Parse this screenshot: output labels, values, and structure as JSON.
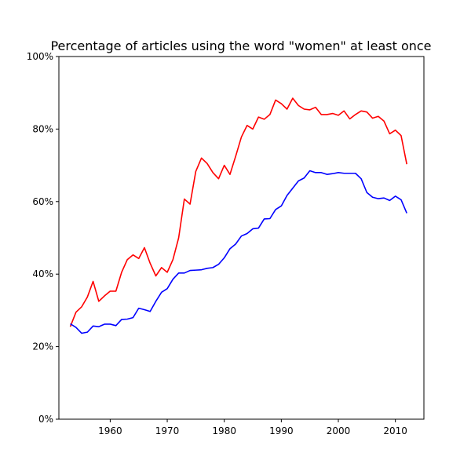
{
  "chart_data": {
    "type": "line",
    "title": "Percentage of articles using the word \"women\" at least once",
    "xlabel": "",
    "ylabel": "",
    "xlim": [
      1951,
      2015
    ],
    "ylim": [
      0,
      1
    ],
    "grid": false,
    "legend": "none",
    "x_ticks": [
      1960,
      1970,
      1980,
      1990,
      2000,
      2010
    ],
    "x_tick_labels": [
      "1960",
      "1970",
      "1980",
      "1990",
      "2000",
      "2010"
    ],
    "y_ticks": [
      0,
      0.2,
      0.4,
      0.6,
      0.8,
      1.0
    ],
    "y_tick_labels": [
      "0%",
      "20%",
      "40%",
      "60%",
      "80%",
      "100%"
    ],
    "x": [
      1953,
      1954,
      1955,
      1956,
      1957,
      1958,
      1959,
      1960,
      1961,
      1962,
      1963,
      1964,
      1965,
      1966,
      1967,
      1968,
      1969,
      1970,
      1971,
      1972,
      1973,
      1974,
      1975,
      1976,
      1977,
      1978,
      1979,
      1980,
      1981,
      1982,
      1983,
      1984,
      1985,
      1986,
      1987,
      1988,
      1989,
      1990,
      1991,
      1992,
      1993,
      1994,
      1995,
      1996,
      1997,
      1998,
      1999,
      2000,
      2001,
      2002,
      2003,
      2004,
      2005,
      2006,
      2007,
      2008,
      2009,
      2010,
      2011,
      2012
    ],
    "series": [
      {
        "color": "#ff0000",
        "values": [
          0.255,
          0.295,
          0.31,
          0.337,
          0.38,
          0.325,
          0.34,
          0.353,
          0.353,
          0.405,
          0.44,
          0.453,
          0.443,
          0.473,
          0.43,
          0.395,
          0.418,
          0.405,
          0.44,
          0.5,
          0.607,
          0.593,
          0.683,
          0.72,
          0.705,
          0.68,
          0.663,
          0.7,
          0.675,
          0.725,
          0.778,
          0.81,
          0.8,
          0.833,
          0.827,
          0.84,
          0.88,
          0.87,
          0.855,
          0.885,
          0.865,
          0.855,
          0.853,
          0.86,
          0.84,
          0.84,
          0.843,
          0.838,
          0.85,
          0.828,
          0.84,
          0.85,
          0.847,
          0.83,
          0.835,
          0.822,
          0.787,
          0.797,
          0.782,
          0.703
        ]
      },
      {
        "color": "#0000ff",
        "values": [
          0.263,
          0.253,
          0.237,
          0.24,
          0.257,
          0.255,
          0.262,
          0.262,
          0.258,
          0.275,
          0.276,
          0.28,
          0.306,
          0.302,
          0.297,
          0.325,
          0.35,
          0.36,
          0.386,
          0.403,
          0.403,
          0.41,
          0.411,
          0.412,
          0.416,
          0.418,
          0.427,
          0.445,
          0.47,
          0.483,
          0.505,
          0.512,
          0.525,
          0.527,
          0.552,
          0.553,
          0.578,
          0.588,
          0.617,
          0.637,
          0.657,
          0.665,
          0.685,
          0.68,
          0.68,
          0.675,
          0.677,
          0.68,
          0.678,
          0.678,
          0.678,
          0.663,
          0.625,
          0.612,
          0.608,
          0.61,
          0.603,
          0.615,
          0.605,
          0.568
        ]
      }
    ]
  }
}
